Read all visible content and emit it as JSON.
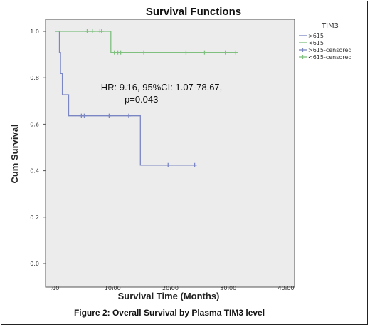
{
  "chart_data": {
    "type": "line",
    "title": "Survival Functions",
    "xlabel": "Survival Time (Months)",
    "ylabel": "Cum Survival",
    "xlim": [
      0,
      40
    ],
    "ylim": [
      0,
      1.0
    ],
    "x_ticks": [
      ".00",
      "10.00",
      "20.00",
      "30.00",
      "40.00"
    ],
    "y_ticks": [
      "0.0",
      "0.2",
      "0.4",
      "0.6",
      "0.8",
      "1.0"
    ],
    "grid": false,
    "legend_title": "TIM3",
    "legend_position": "right",
    "legend": [
      ">615",
      "<615",
      ">615-censored",
      "<615-censored"
    ],
    "series": [
      {
        "name": ">615",
        "color": "#7b86c4",
        "steps": [
          [
            0.0,
            1.0
          ],
          [
            0.8,
            1.0
          ],
          [
            0.8,
            0.909
          ],
          [
            1.0,
            0.909
          ],
          [
            1.0,
            0.818
          ],
          [
            1.3,
            0.818
          ],
          [
            1.3,
            0.727
          ],
          [
            2.4,
            0.727
          ],
          [
            2.4,
            0.636
          ],
          [
            14.8,
            0.636
          ],
          [
            14.8,
            0.424
          ],
          [
            24.2,
            0.424
          ]
        ],
        "censored": [
          [
            4.6,
            0.636
          ],
          [
            5.1,
            0.636
          ],
          [
            9.4,
            0.636
          ],
          [
            12.8,
            0.636
          ],
          [
            19.6,
            0.424
          ],
          [
            24.2,
            0.424
          ]
        ]
      },
      {
        "name": "<615",
        "color": "#7fc07f",
        "steps": [
          [
            0.0,
            1.0
          ],
          [
            9.7,
            1.0
          ],
          [
            9.7,
            0.909
          ],
          [
            31.3,
            0.909
          ]
        ],
        "censored": [
          [
            5.6,
            1.0
          ],
          [
            6.5,
            1.0
          ],
          [
            7.8,
            1.0
          ],
          [
            8.1,
            1.0
          ],
          [
            10.3,
            0.909
          ],
          [
            10.9,
            0.909
          ],
          [
            11.4,
            0.909
          ],
          [
            15.4,
            0.909
          ],
          [
            22.7,
            0.909
          ],
          [
            25.9,
            0.909
          ],
          [
            29.5,
            0.909
          ],
          [
            31.3,
            0.909
          ]
        ]
      }
    ],
    "annotation_line1": "HR: 9.16, 95%CI: 1.07-78.67,",
    "annotation_line2": "p=0.043",
    "caption": "Figure 2: Overall Survival by Plasma TIM3 level"
  }
}
